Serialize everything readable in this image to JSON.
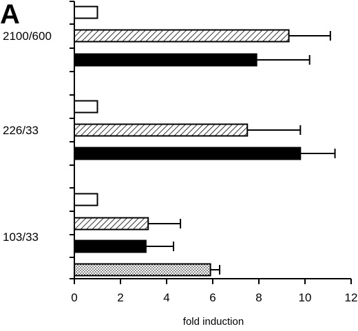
{
  "panel_label": "A",
  "chart_data": {
    "type": "bar",
    "orientation": "horizontal",
    "xlabel": "fold induction",
    "ylabel": "",
    "xlim": [
      0,
      12
    ],
    "xticks": [
      "0",
      "2",
      "4",
      "6",
      "8",
      "10",
      "12"
    ],
    "grid": false,
    "legend": "none",
    "groups": [
      {
        "label": "2100/600",
        "bars": [
          {
            "pattern": "white",
            "value": 1.0,
            "error": 0
          },
          {
            "pattern": "hatched",
            "value": 9.3,
            "error": 1.8
          },
          {
            "pattern": "black",
            "value": 7.9,
            "error": 2.3
          }
        ]
      },
      {
        "label": "226/33",
        "bars": [
          {
            "pattern": "white",
            "value": 1.0,
            "error": 0
          },
          {
            "pattern": "hatched",
            "value": 7.5,
            "error": 2.3
          },
          {
            "pattern": "black",
            "value": 9.8,
            "error": 1.5
          }
        ]
      },
      {
        "label": "103/33",
        "bars": [
          {
            "pattern": "white",
            "value": 1.0,
            "error": 0
          },
          {
            "pattern": "hatched",
            "value": 3.2,
            "error": 1.4
          },
          {
            "pattern": "black",
            "value": 3.1,
            "error": 1.2
          },
          {
            "pattern": "dotted",
            "value": 5.9,
            "error": 0.4
          }
        ]
      }
    ]
  }
}
